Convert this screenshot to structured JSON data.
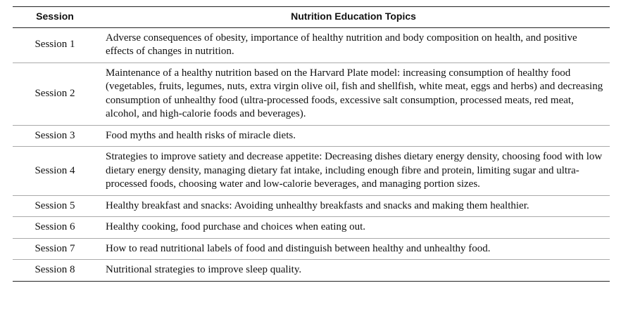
{
  "table": {
    "header": [
      "Session",
      "Nutrition Education Topics"
    ],
    "rows": [
      [
        "Session 1",
        "Adverse consequences of obesity, importance of healthy nutrition and body composition on health, and positive effects of changes in nutrition."
      ],
      [
        "Session 2",
        "Maintenance of a healthy nutrition based on the Harvard Plate model: increasing consumption of healthy food (vegetables, fruits, legumes, nuts, extra virgin olive oil, fish and shellfish, white meat, eggs and herbs) and decreasing consumption of unhealthy food (ultra-processed foods, excessive salt consumption, processed meats, red meat, alcohol, and high-calorie foods and beverages)."
      ],
      [
        "Session 3",
        "Food myths and health risks of miracle diets."
      ],
      [
        "Session 4",
        "Strategies to improve satiety and decrease appetite: Decreasing dishes dietary energy density, choosing food with low dietary energy density, managing dietary fat intake, including enough fibre and protein, limiting sugar and ultra-processed foods, choosing water and low-calorie beverages, and managing portion sizes."
      ],
      [
        "Session 5",
        "Healthy breakfast and snacks: Avoiding unhealthy breakfasts and snacks and making them healthier."
      ],
      [
        "Session 6",
        "Healthy cooking, food purchase and choices when eating out."
      ],
      [
        "Session 7",
        "How to read nutritional labels of food and distinguish between healthy and unhealthy food."
      ],
      [
        "Session 8",
        "Nutritional strategies to improve sleep quality."
      ]
    ]
  }
}
